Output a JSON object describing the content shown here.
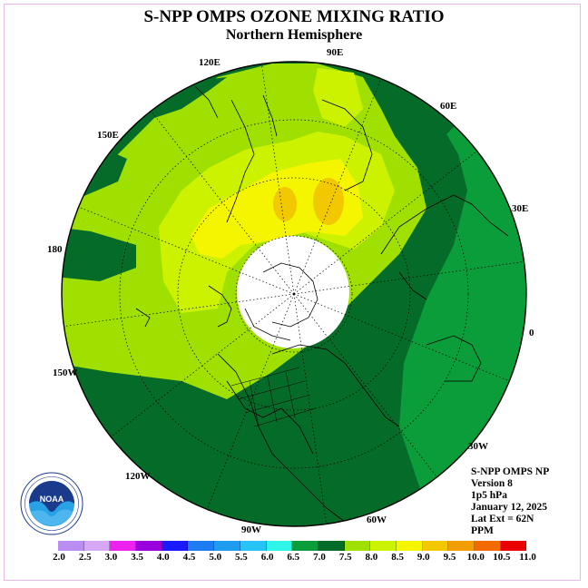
{
  "header": {
    "title": "S-NPP OMPS OZONE MIXING RATIO",
    "subtitle": "Northern Hemisphere"
  },
  "longitude_labels": [
    "90E",
    "60E",
    "30E",
    "0",
    "30W",
    "60W",
    "90W",
    "120W",
    "150W",
    "180",
    "150E",
    "120E"
  ],
  "info": {
    "line1": "S-NPP OMPS NP",
    "line2": "Version 8",
    "line3": "1p5 hPa",
    "line4": "January 12, 2025",
    "line5": "Lat Ext = 62N",
    "line6": "PPM"
  },
  "logo": {
    "text": "NOAA",
    "ring_text": "NATIONAL OCEANIC AND ATMOSPHERIC ADMINISTRATION · U.S. DEPARTMENT OF COMMERCE"
  },
  "colorbar": {
    "labels": [
      "2.0",
      "2.5",
      "3.0",
      "3.5",
      "4.0",
      "4.5",
      "5.0",
      "5.5",
      "6.0",
      "6.5",
      "7.0",
      "7.5",
      "8.0",
      "8.5",
      "9.0",
      "9.5",
      "10.0",
      "10.5",
      "11.0"
    ],
    "colors": [
      "#b98ef0",
      "#d7a8f5",
      "#ee22ee",
      "#9900dd",
      "#1a1aff",
      "#1e7cf2",
      "#1f9cf0",
      "#27c3f7",
      "#2ff5e8",
      "#0a9d3a",
      "#046b28",
      "#a0e000",
      "#ccf200",
      "#f5f500",
      "#f2c800",
      "#f29d00",
      "#f26a00",
      "#ea0000",
      "#8c5a3c"
    ]
  },
  "map_colors": {
    "dark_green": "#046b28",
    "mid_green": "#0a9d3a",
    "lime": "#a0e000",
    "yellow_green": "#ccf200",
    "yellow": "#f5f500",
    "orange": "#f2c800",
    "pole_hole": "#ffffff"
  }
}
